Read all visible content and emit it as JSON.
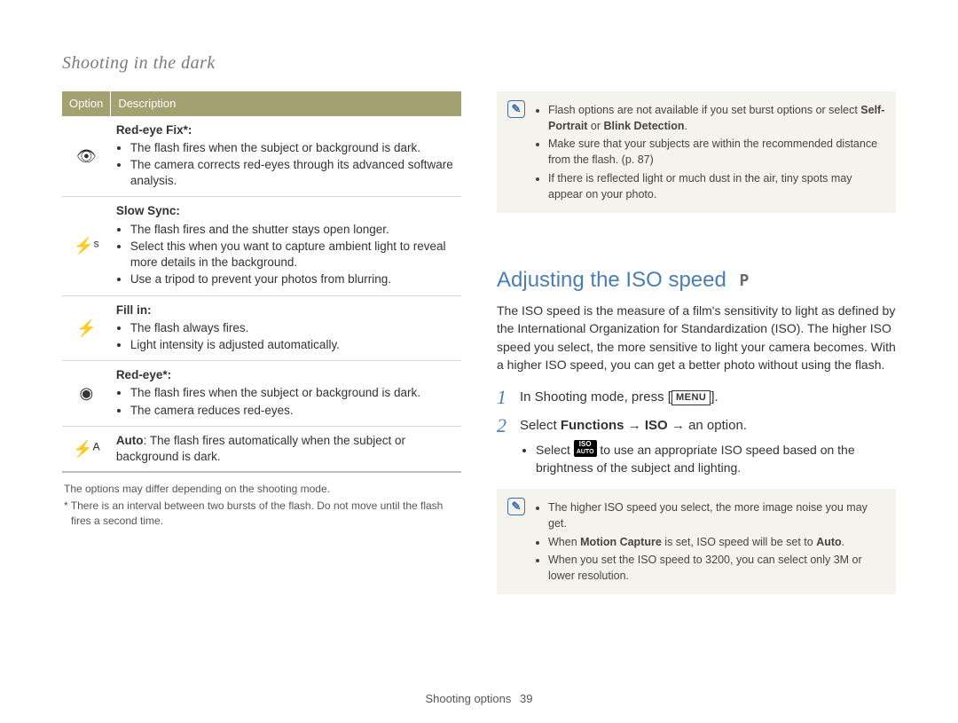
{
  "header": {
    "title": "Shooting in the dark"
  },
  "table": {
    "head": {
      "c1": "Option",
      "c2": "Description"
    },
    "rows": [
      {
        "icon": "👁",
        "title": "Red-eye Fix*:",
        "items": [
          "The flash fires when the subject or background is dark.",
          "The camera corrects red-eyes through its advanced software analysis."
        ]
      },
      {
        "icon": "⚡ˢ",
        "title": "Slow Sync:",
        "items": [
          "The flash fires and the shutter stays open longer.",
          "Select this when you want to capture ambient light to reveal more details in the background.",
          "Use a tripod to prevent your photos from blurring."
        ]
      },
      {
        "icon": "⚡",
        "title": "Fill in:",
        "items": [
          "The flash always fires.",
          "Light intensity is adjusted automatically."
        ]
      },
      {
        "icon": "◉",
        "title": "Red-eye*:",
        "items": [
          "The flash fires when the subject or background is dark.",
          "The camera reduces red-eyes."
        ]
      },
      {
        "icon": "⚡ᴬ",
        "title": "Auto",
        "auto_text": ": The flash fires automatically when the subject or background is dark."
      }
    ]
  },
  "footnotes": {
    "l1": "The options may differ depending on the shooting mode.",
    "l2": "* There is an interval between two bursts of the flash. Do not move until the flash fires a second time."
  },
  "notebox1": {
    "items_pre": "Flash options are not available if you set burst options or select ",
    "b1": "Self-Portrait",
    "or": " or ",
    "b2": "Blink Detection",
    "dot": ".",
    "i2": "Make sure that your subjects are within the recommended distance from the flash. (p. 87)",
    "i3": "If there is reflected light or much dust in the air, tiny spots may appear on your photo."
  },
  "iso": {
    "heading": "Adjusting the ISO speed",
    "mode": "P",
    "para": "The ISO speed is the measure of a film's sensitivity to light as defined by the International Organization for Standardization (ISO). The higher ISO speed you select, the more sensitive to light your camera becomes. With a higher ISO speed, you can get a better photo without using the flash.",
    "step1_pre": "In Shooting mode, press [",
    "step1_menu": "MENU",
    "step1_post": "].",
    "step2_pre": "Select ",
    "step2_b1": "Functions",
    "step2_arrow1": " → ",
    "step2_b2": "ISO",
    "step2_arrow2": " → ",
    "step2_post": "an option.",
    "step2_sub_pre": "Select ",
    "step2_sub_post": " to use an appropriate ISO speed based on the brightness of the subject and lighting.",
    "iso_icon_top": "ISO",
    "iso_icon_bot": "AUTO"
  },
  "notebox2": {
    "i1": "The higher ISO speed you select, the more image noise you may get.",
    "i2_pre": "When ",
    "i2_b": "Motion Capture",
    "i2_mid": " is set, ISO speed will be set to ",
    "i2_b2": "Auto",
    "i2_post": ".",
    "i3": "When you set the ISO speed to 3200, you can select only 3M or lower resolution."
  },
  "footer": {
    "label": "Shooting options",
    "page": "39"
  }
}
